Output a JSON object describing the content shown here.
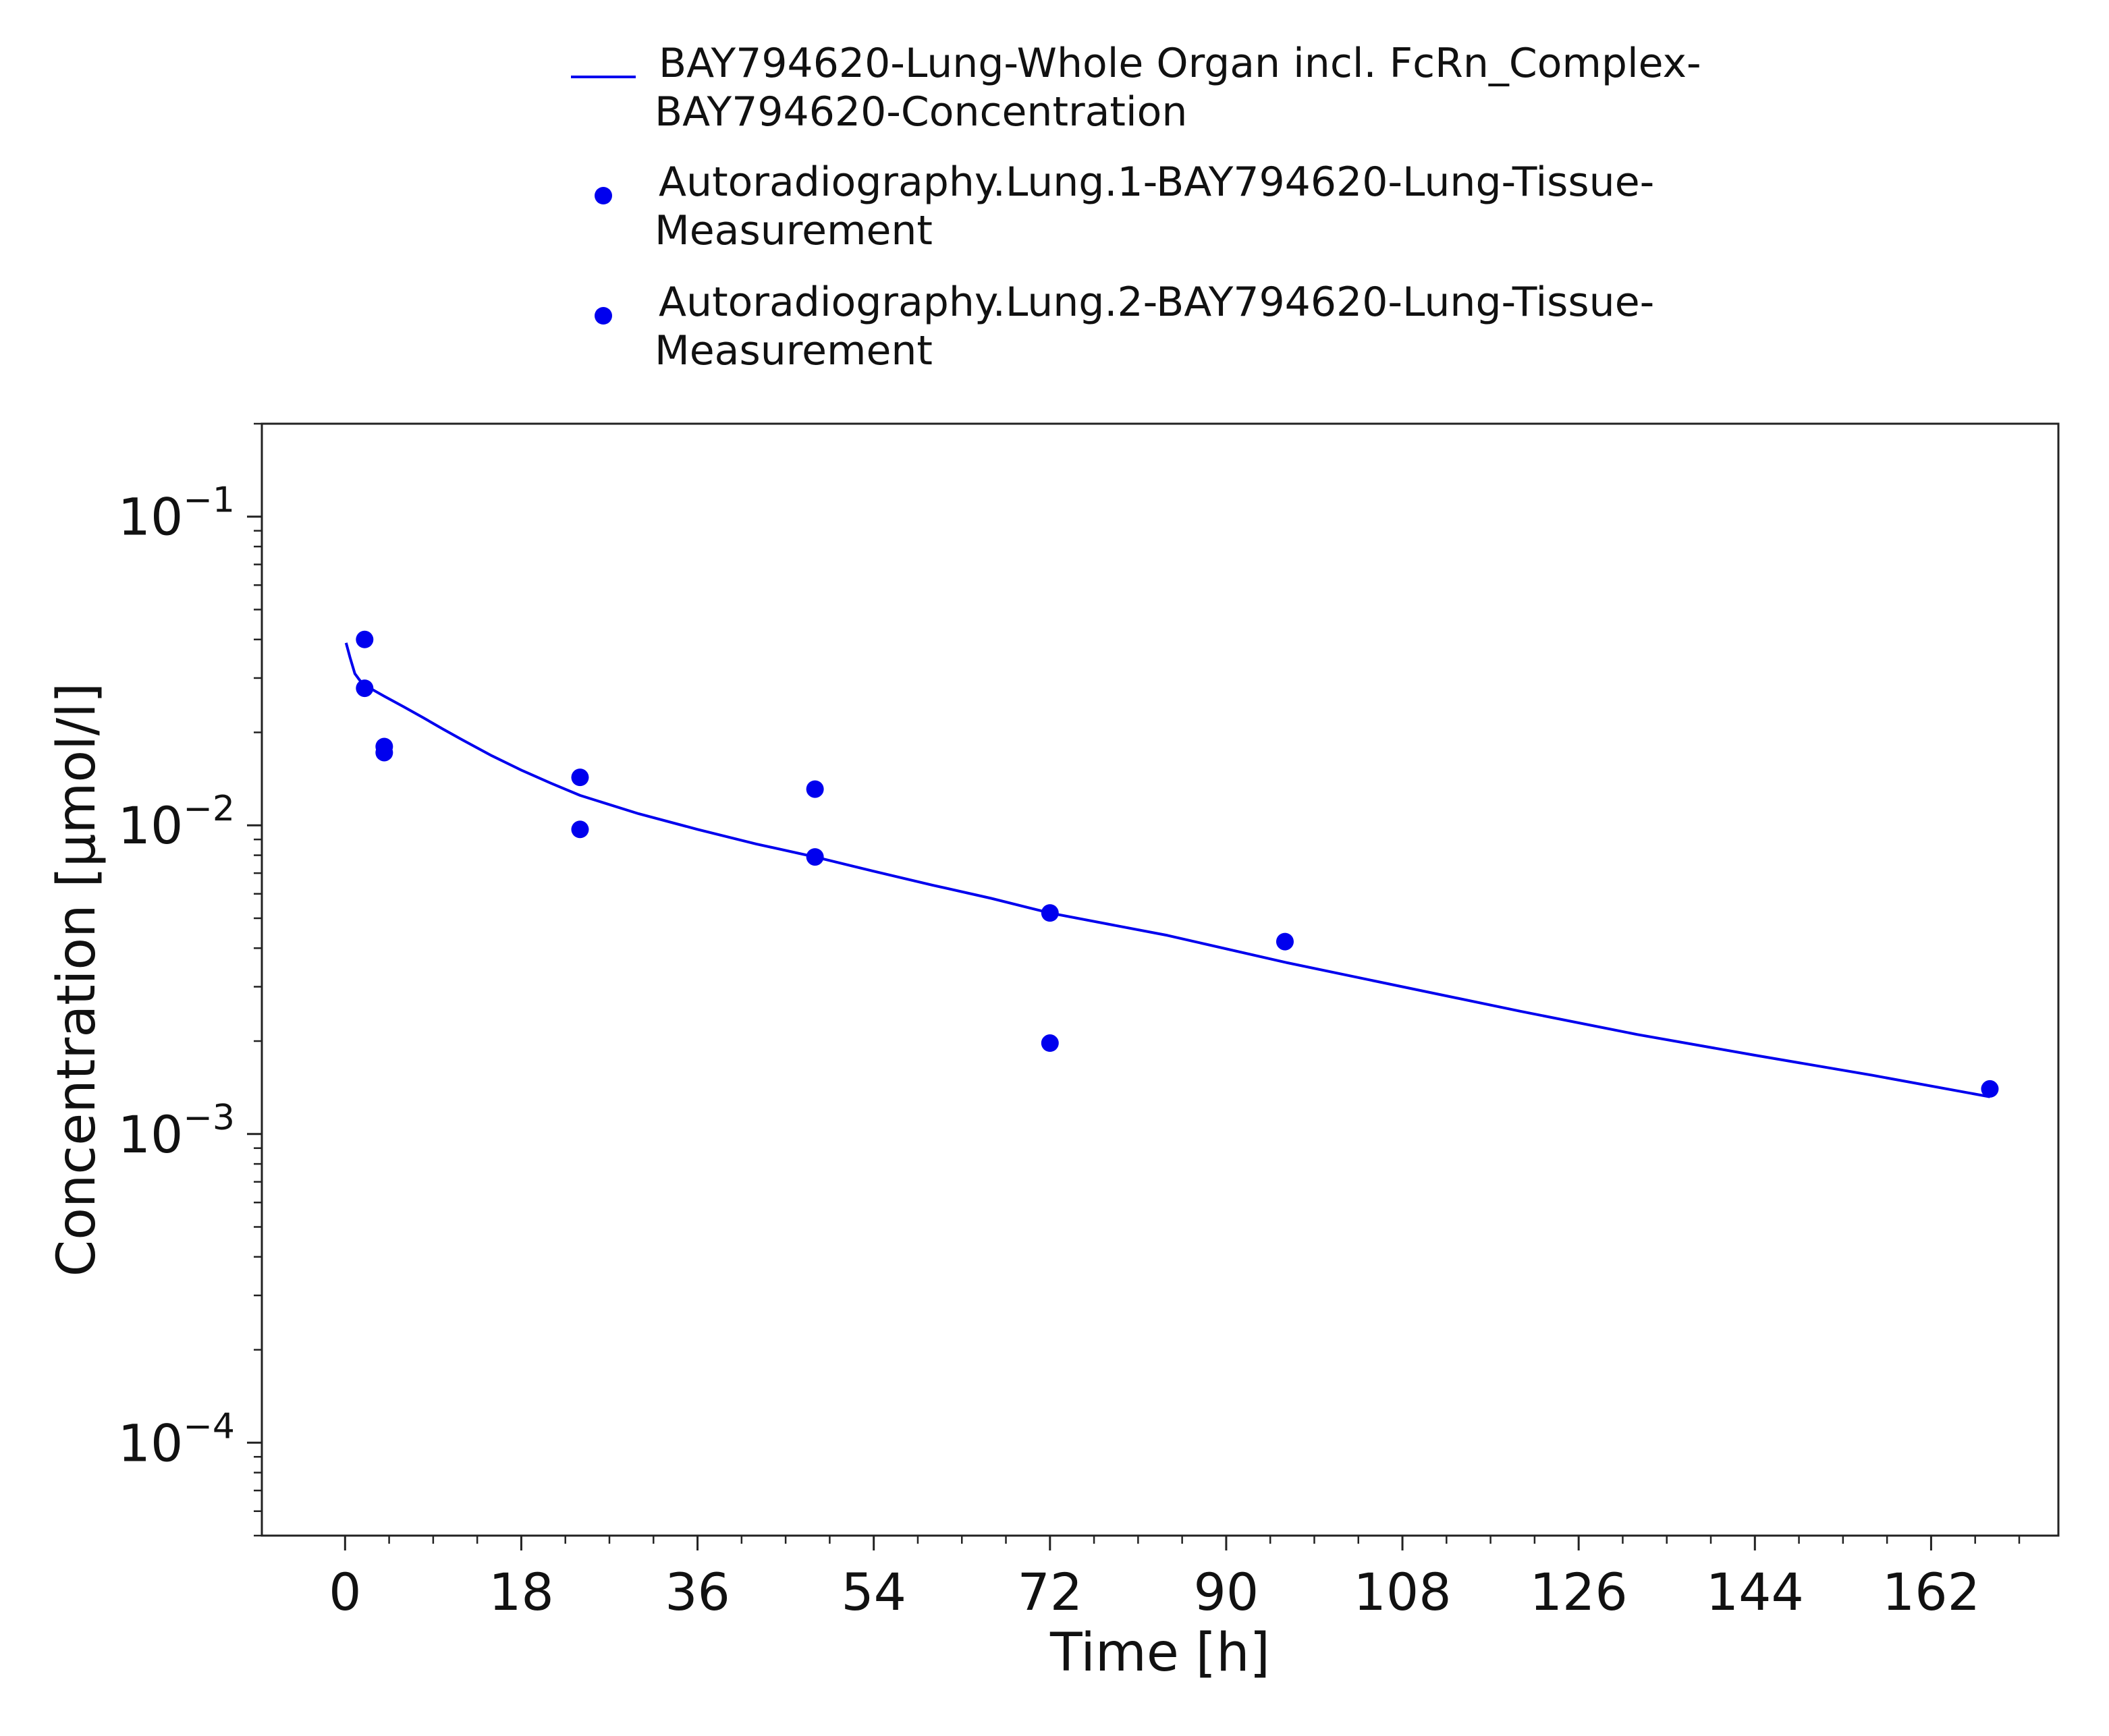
{
  "chart_data": {
    "type": "scatter",
    "xlabel": "Time [h]",
    "ylabel": "Concentration [µmol/l]",
    "x_scale": "linear",
    "y_scale": "log",
    "xlim": [
      -8.5,
      175
    ],
    "ylim": [
      5e-05,
      0.2
    ],
    "x_ticks": [
      0,
      18,
      36,
      54,
      72,
      90,
      108,
      126,
      144,
      162
    ],
    "y_ticks": [
      {
        "value": 0.1,
        "base": "10",
        "exp": "−1"
      },
      {
        "value": 0.01,
        "base": "10",
        "exp": "−2"
      },
      {
        "value": 0.001,
        "base": "10",
        "exp": "−3"
      },
      {
        "value": 0.0001,
        "base": "10",
        "exp": "−4"
      }
    ],
    "grid": false,
    "legend_position": "top",
    "series": [
      {
        "name": "BAY794620-Lung-Whole Organ incl. FcRn_Complex-BAY794620-Concentration",
        "legend_lines": [
          "BAY794620-Lung-Whole Organ incl. FcRn_Complex-",
          "BAY794620-Concentration"
        ],
        "kind": "line",
        "color": "#0000ee",
        "x": [
          0.1,
          0.5,
          1,
          1.5,
          2,
          3,
          4,
          6,
          8,
          10,
          12,
          15,
          18,
          21,
          24,
          30,
          36,
          42,
          48,
          54,
          60,
          66,
          72,
          84,
          96,
          108,
          120,
          132,
          144,
          156,
          168
        ],
        "y": [
          0.039,
          0.035,
          0.031,
          0.0295,
          0.0285,
          0.0273,
          0.0262,
          0.0242,
          0.0223,
          0.0205,
          0.0189,
          0.0168,
          0.0151,
          0.0137,
          0.0125,
          0.0109,
          0.0097,
          0.0087,
          0.0079,
          0.0071,
          0.0064,
          0.0058,
          0.0052,
          0.0044,
          0.0036,
          0.003,
          0.0025,
          0.0021,
          0.0018,
          0.00155,
          0.00132
        ]
      },
      {
        "name": "Autoradiography.Lung.1-BAY794620-Lung-Tissue-Measurement",
        "legend_lines": [
          "Autoradiography.Lung.1-BAY794620-Lung-Tissue-",
          "Measurement"
        ],
        "kind": "scatter",
        "color": "#0000ee",
        "x": [
          2,
          4,
          24,
          48,
          72,
          96,
          168
        ],
        "y": [
          0.04,
          0.018,
          0.0143,
          0.0131,
          0.0052,
          0.0042,
          0.0014
        ]
      },
      {
        "name": "Autoradiography.Lung.2-BAY794620-Lung-Tissue-Measurement",
        "legend_lines": [
          "Autoradiography.Lung.2-BAY794620-Lung-Tissue-",
          "Measurement"
        ],
        "kind": "scatter",
        "color": "#0000ee",
        "x": [
          2,
          4,
          24,
          48,
          72
        ],
        "y": [
          0.0278,
          0.0172,
          0.0097,
          0.0079,
          0.00197
        ]
      }
    ]
  }
}
